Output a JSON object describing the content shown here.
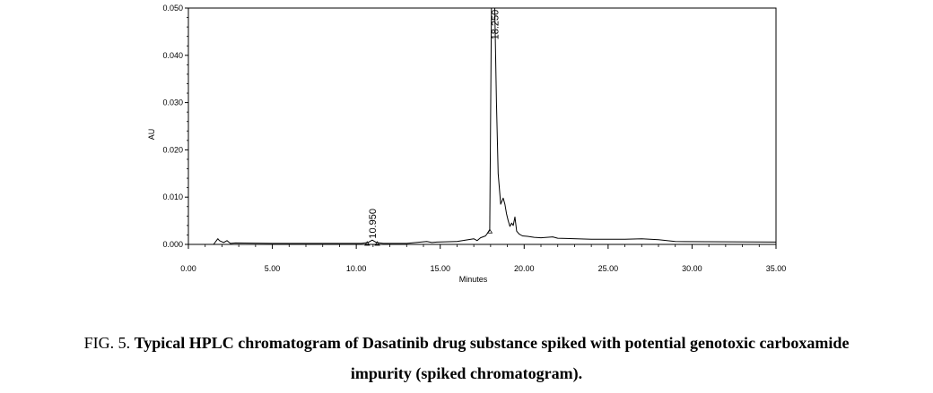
{
  "chart_data": {
    "type": "line",
    "xlabel": "Minutes",
    "ylabel": "AU",
    "xlim": [
      0,
      35
    ],
    "ylim": [
      0,
      0.05
    ],
    "x_ticks": [
      "0.00",
      "5.00",
      "10.00",
      "15.00",
      "20.00",
      "25.00",
      "30.00",
      "35.00"
    ],
    "y_ticks": [
      "0.000",
      "0.010",
      "0.020",
      "0.030",
      "0.040",
      "0.050"
    ],
    "grid": false,
    "series": [
      {
        "x": [
          0,
          1.5,
          1.75,
          1.85,
          2.1,
          2.3,
          2.5,
          2.8,
          5,
          8,
          10.3,
          10.7,
          10.95,
          11.2,
          11.6,
          13,
          14.2,
          14.5,
          14.8,
          16,
          17,
          17.2,
          17.4,
          17.7,
          17.95,
          18.05,
          18.15,
          18.25,
          18.35,
          18.45,
          18.6,
          18.75,
          18.85,
          18.95,
          19.05,
          19.15,
          19.25,
          19.35,
          19.45,
          19.55,
          19.7,
          19.9,
          20.2,
          20.6,
          21,
          21.7,
          22,
          24,
          26,
          27,
          28,
          29,
          35
        ],
        "y": [
          0,
          0,
          0.0012,
          0.0008,
          0.0004,
          0.0008,
          0.0002,
          0.0003,
          0.0002,
          0.0002,
          0.0002,
          0.0004,
          0.0009,
          0.0004,
          0.0002,
          0.0002,
          0.0006,
          0.0004,
          0.0005,
          0.0006,
          0.0012,
          0.0008,
          0.0014,
          0.0018,
          0.003,
          0.05,
          0.05,
          0.05,
          0.03,
          0.015,
          0.0085,
          0.0098,
          0.0085,
          0.0065,
          0.005,
          0.0038,
          0.0045,
          0.004,
          0.0058,
          0.0028,
          0.0022,
          0.0018,
          0.0017,
          0.0015,
          0.0014,
          0.0016,
          0.0013,
          0.0011,
          0.0011,
          0.0012,
          0.001,
          0.0006,
          0.0005
        ]
      }
    ],
    "peak_labels": [
      {
        "x": 10.95,
        "label": "10.950",
        "label_base": 0.0012
      },
      {
        "x": 18.25,
        "label": "18.250",
        "label_base": 0.0433
      }
    ]
  },
  "caption": {
    "prefix": "FIG. 5. ",
    "line1_bold": "Typical HPLC chromatogram of Dasatinib drug substance spiked with potential genotoxic carboxamide",
    "line2_bold": "impurity (spiked chromatogram)."
  }
}
